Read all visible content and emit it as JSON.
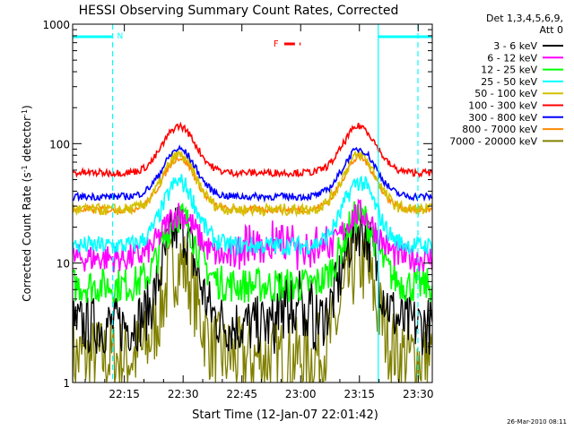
{
  "chart_data": {
    "type": "line",
    "title": "HESSI Observing Summary Count Rates, Corrected",
    "xlabel": "Start Time (12-Jan-07 22:01:42)",
    "ylabel_main": "Corrected Count Rate (s",
    "ylabel_sup1": "-1",
    "ylabel_mid": " detector",
    "ylabel_sup2": "-1",
    "ylabel_end": ")",
    "y_scale": "log",
    "ylim": [
      1,
      1000
    ],
    "xlim_minutes": [
      22.03,
      23.56
    ],
    "x_ticks": [
      {
        "label": "22:15",
        "value": 22.25
      },
      {
        "label": "22:30",
        "value": 22.5
      },
      {
        "label": "22:45",
        "value": 22.75
      },
      {
        "label": "23:00",
        "value": 23.0
      },
      {
        "label": "23:15",
        "value": 23.25
      },
      {
        "label": "23:30",
        "value": 23.5
      }
    ],
    "y_ticks": [
      {
        "label": "1",
        "value": 1
      },
      {
        "label": "10",
        "value": 10
      },
      {
        "label": "100",
        "value": 100
      },
      {
        "label": "1000",
        "value": 1000
      }
    ],
    "legend": {
      "header1": "Det 1,3,4,5,6,9,",
      "header2": "Att 0",
      "placement": "right"
    },
    "series": [
      {
        "name": "3 - 6 keV",
        "color": "#000000",
        "base": 3,
        "peak": 20,
        "noise": 0.25
      },
      {
        "name": "6 - 12 keV",
        "color": "#ff00ff",
        "base": 11,
        "peak": 26,
        "noise": 0.12
      },
      {
        "name": "12 - 25 keV",
        "color": "#00ff00",
        "base": 6.5,
        "peak": 25,
        "noise": 0.15
      },
      {
        "name": "25 - 50 keV",
        "color": "#00ffff",
        "base": 14,
        "peak": 48,
        "noise": 0.08
      },
      {
        "name": "50 - 100 keV",
        "color": "#d4c000",
        "base": 28,
        "peak": 80,
        "noise": 0.05
      },
      {
        "name": "100 - 300 keV",
        "color": "#ff0000",
        "base": 57,
        "peak": 140,
        "noise": 0.03
      },
      {
        "name": "300 - 800 keV",
        "color": "#0000ff",
        "base": 36,
        "peak": 90,
        "noise": 0.03
      },
      {
        "name": "800 - 7000 keV",
        "color": "#ff8800",
        "base": 28,
        "peak": 76,
        "noise": 0.03
      },
      {
        "name": "7000 - 20000 keV",
        "color": "#808000",
        "base": 1.6,
        "peak": 10,
        "noise": 0.35
      }
    ],
    "peaks_minutes": [
      22.483,
      23.25
    ],
    "annotations": [
      {
        "label": "N",
        "color": "#00ffff",
        "type": "night",
        "start": 22.03,
        "end": 22.2
      },
      {
        "label": "",
        "color": "#00ffff",
        "type": "night",
        "start": 23.33,
        "end": 23.56
      },
      {
        "label": "F",
        "color": "#ff0000",
        "type": "flare",
        "start": 22.93,
        "end": 23.0
      }
    ],
    "footer_date": "26-Mar-2010 08:11"
  }
}
